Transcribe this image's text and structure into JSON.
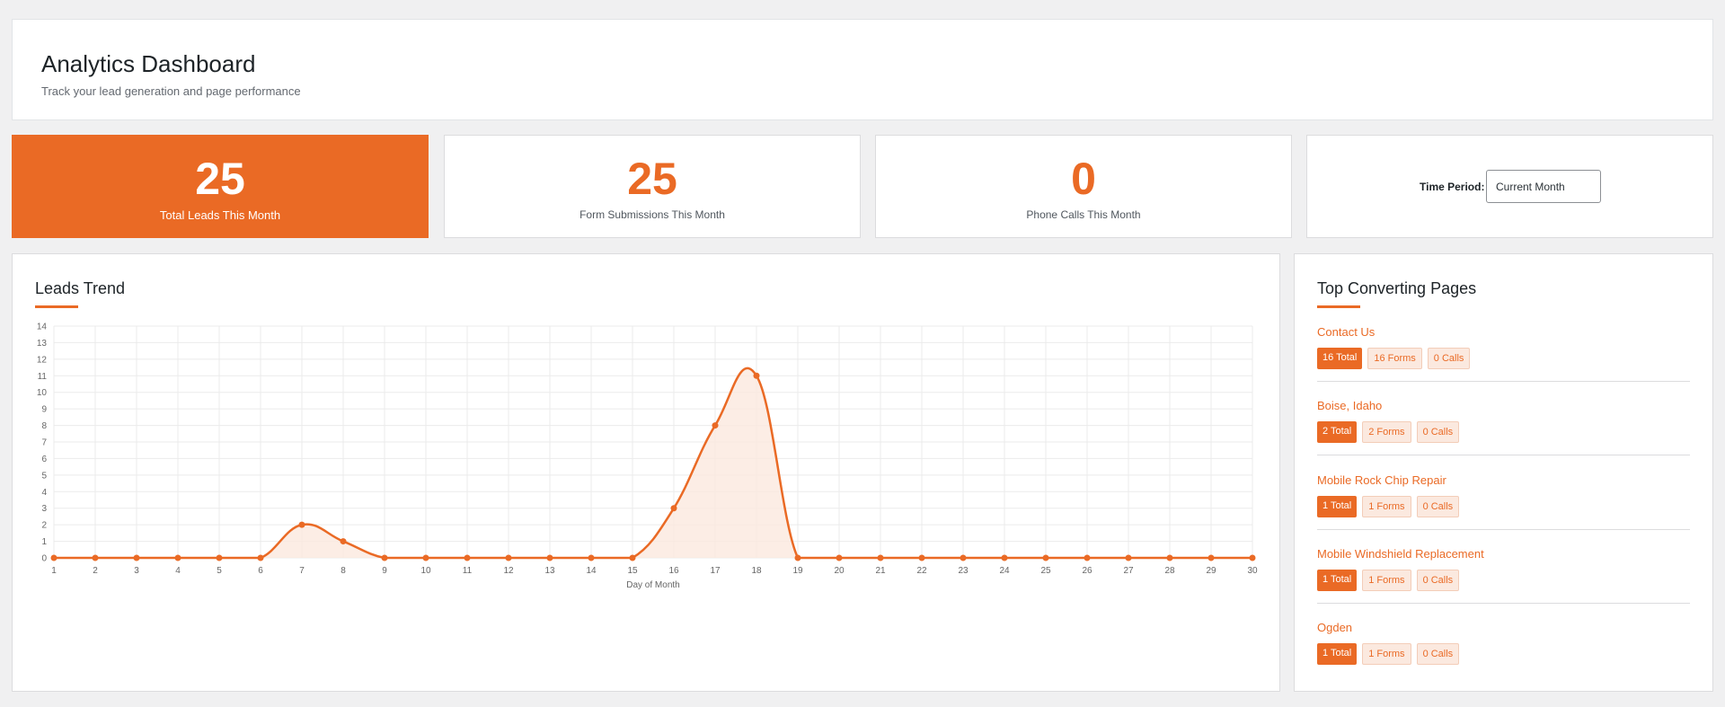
{
  "header": {
    "title": "Analytics Dashboard",
    "subtitle": "Track your lead generation and page performance"
  },
  "stats": [
    {
      "value": "25",
      "label": "Total Leads This Month"
    },
    {
      "value": "25",
      "label": "Form Submissions This Month"
    },
    {
      "value": "0",
      "label": "Phone Calls This Month"
    }
  ],
  "period": {
    "label": "Time Period:",
    "selected": "Current Month"
  },
  "trend": {
    "title": "Leads Trend"
  },
  "top_pages": {
    "title": "Top Converting Pages",
    "items": [
      {
        "name": "Contact Us",
        "total": "16 Total",
        "forms": "16 Forms",
        "calls": "0 Calls"
      },
      {
        "name": "Boise, Idaho",
        "total": "2 Total",
        "forms": "2 Forms",
        "calls": "0 Calls"
      },
      {
        "name": "Mobile Rock Chip Repair",
        "total": "1 Total",
        "forms": "1 Forms",
        "calls": "0 Calls"
      },
      {
        "name": "Mobile Windshield Replacement",
        "total": "1 Total",
        "forms": "1 Forms",
        "calls": "0 Calls"
      },
      {
        "name": "Ogden",
        "total": "1 Total",
        "forms": "1 Forms",
        "calls": "0 Calls"
      }
    ]
  },
  "colors": {
    "accent": "#ea6a25",
    "fill": "#fbe9df",
    "grid": "#ebebeb"
  },
  "chart_data": {
    "type": "area",
    "title": "",
    "xlabel": "Day of Month",
    "ylabel": "",
    "x": [
      1,
      2,
      3,
      4,
      5,
      6,
      7,
      8,
      9,
      10,
      11,
      12,
      13,
      14,
      15,
      16,
      17,
      18,
      19,
      20,
      21,
      22,
      23,
      24,
      25,
      26,
      27,
      28,
      29,
      30
    ],
    "series": [
      {
        "values": [
          0,
          0,
          0,
          0,
          0,
          0,
          2,
          1,
          0,
          0,
          0,
          0,
          0,
          0,
          0,
          3,
          8,
          11,
          0,
          0,
          0,
          0,
          0,
          0,
          0,
          0,
          0,
          0,
          0,
          0
        ]
      }
    ],
    "ylim": [
      0,
      14
    ],
    "yticks": [
      0,
      1,
      2,
      3,
      4,
      5,
      6,
      7,
      8,
      9,
      10,
      11,
      12,
      13,
      14
    ],
    "grid": true,
    "legend": "none"
  }
}
